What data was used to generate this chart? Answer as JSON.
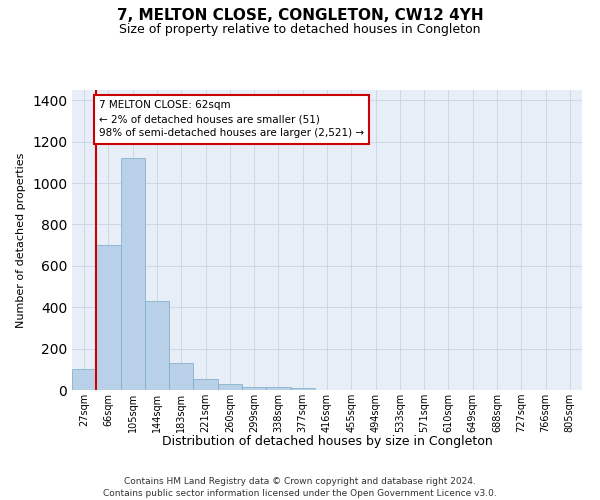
{
  "title": "7, MELTON CLOSE, CONGLETON, CW12 4YH",
  "subtitle": "Size of property relative to detached houses in Congleton",
  "xlabel": "Distribution of detached houses by size in Congleton",
  "ylabel": "Number of detached properties",
  "categories": [
    "27sqm",
    "66sqm",
    "105sqm",
    "144sqm",
    "183sqm",
    "221sqm",
    "260sqm",
    "299sqm",
    "338sqm",
    "377sqm",
    "416sqm",
    "455sqm",
    "494sqm",
    "533sqm",
    "571sqm",
    "610sqm",
    "649sqm",
    "688sqm",
    "727sqm",
    "766sqm",
    "805sqm"
  ],
  "values": [
    100,
    700,
    1120,
    430,
    130,
    55,
    30,
    15,
    15,
    10,
    0,
    0,
    0,
    0,
    0,
    0,
    0,
    0,
    0,
    0,
    0
  ],
  "bar_color": "#b8d0e8",
  "bar_edge_color": "#7aaac8",
  "highlight_line_color": "#cc0000",
  "annotation_line1": "7 MELTON CLOSE: 62sqm",
  "annotation_line2": "← 2% of detached houses are smaller (51)",
  "annotation_line3": "98% of semi-detached houses are larger (2,521) →",
  "annotation_box_color": "#ffffff",
  "annotation_box_edge": "#cc0000",
  "ylim": [
    0,
    1450
  ],
  "yticks": [
    0,
    200,
    400,
    600,
    800,
    1000,
    1200,
    1400
  ],
  "grid_color": "#ccd8e8",
  "bg_color": "#e8eef8",
  "footer_line1": "Contains HM Land Registry data © Crown copyright and database right 2024.",
  "footer_line2": "Contains public sector information licensed under the Open Government Licence v3.0."
}
